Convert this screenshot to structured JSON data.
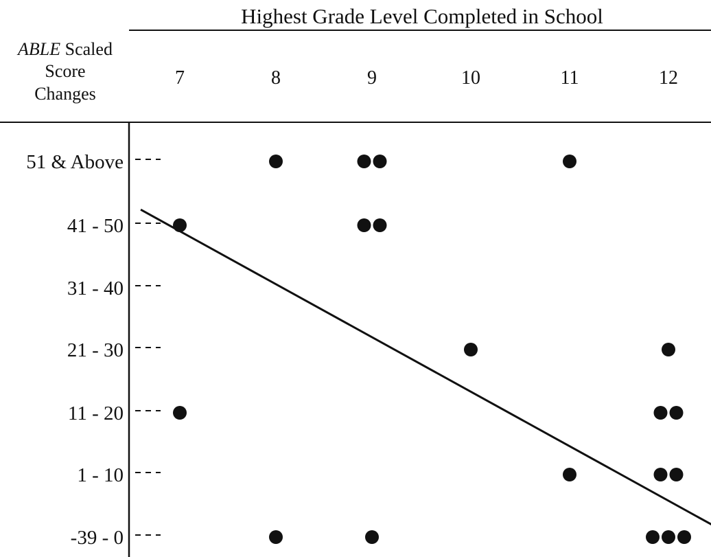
{
  "chart_data": {
    "type": "scatter",
    "title": "Highest Grade Level Completed in School",
    "ylabel_italic": "ABLE",
    "ylabel_rest": " Scaled",
    "ylabel_lines": [
      "Score",
      "Changes"
    ],
    "x_categories": [
      "7",
      "8",
      "9",
      "10",
      "11",
      "12"
    ],
    "y_categories": [
      "51 & Above",
      "41 - 50",
      "31 - 40",
      "21 - 30",
      "11 - 20",
      "1 - 10",
      "-39 - 0"
    ],
    "points": [
      {
        "x": "8",
        "y": "51 & Above",
        "count": 1
      },
      {
        "x": "9",
        "y": "51 & Above",
        "count": 2
      },
      {
        "x": "11",
        "y": "51 & Above",
        "count": 1
      },
      {
        "x": "7",
        "y": "41 - 50",
        "count": 1
      },
      {
        "x": "9",
        "y": "41 - 50",
        "count": 2
      },
      {
        "x": "10",
        "y": "21 - 30",
        "count": 1
      },
      {
        "x": "12",
        "y": "21 - 30",
        "count": 1
      },
      {
        "x": "7",
        "y": "11 - 20",
        "count": 1
      },
      {
        "x": "12",
        "y": "11 - 20",
        "count": 2
      },
      {
        "x": "11",
        "y": "1 - 10",
        "count": 1
      },
      {
        "x": "12",
        "y": "1 - 10",
        "count": 2
      },
      {
        "x": "8",
        "y": "-39 - 0",
        "count": 1
      },
      {
        "x": "9",
        "y": "-39 - 0",
        "count": 1
      },
      {
        "x": "12",
        "y": "-39 - 0",
        "count": 3
      }
    ],
    "trend_line": {
      "from": {
        "x": 6.6,
        "y": 6.23
      },
      "to": {
        "x": 12.5,
        "y": 1.15
      }
    },
    "grid": false,
    "legend": "none"
  }
}
